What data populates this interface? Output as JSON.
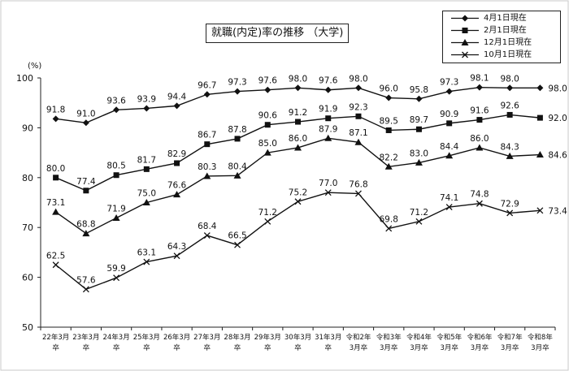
{
  "chart_data": {
    "type": "line",
    "title": "就職(内定)率の推移 （大学)",
    "yunit": "(%)",
    "ylim": [
      50,
      100
    ],
    "yticks": [
      "50",
      "60",
      "70",
      "80",
      "90",
      "100"
    ],
    "grid": false,
    "legend_position": "top-right",
    "categories": [
      [
        "22年3月",
        "卒"
      ],
      [
        "23年3月",
        "卒"
      ],
      [
        "24年3月",
        "卒"
      ],
      [
        "25年3月",
        "卒"
      ],
      [
        "26年3月",
        "卒"
      ],
      [
        "27年3月",
        "卒"
      ],
      [
        "28年3月",
        "卒"
      ],
      [
        "29年3月",
        "卒"
      ],
      [
        "30年3月",
        "卒"
      ],
      [
        "31年3月",
        "卒"
      ],
      [
        "令和2年",
        "3月卒"
      ],
      [
        "令和3年",
        "3月卒"
      ],
      [
        "令和4年",
        "3月卒"
      ],
      [
        "令和5年",
        "3月卒"
      ],
      [
        "令和6年",
        "3月卒"
      ],
      [
        "令和7年",
        "3月卒"
      ],
      [
        "令和8年",
        "3月卒"
      ]
    ],
    "series": [
      {
        "name": "4月1日現在",
        "marker": "diamond",
        "values": [
          91.8,
          91.0,
          93.6,
          93.9,
          94.4,
          96.7,
          97.3,
          97.6,
          98.0,
          97.6,
          98.0,
          96.0,
          95.8,
          97.3,
          98.1,
          98.0,
          98.0
        ],
        "labels": [
          "91.8",
          "91.0",
          "93.6",
          "93.9",
          "94.4",
          "96.7",
          "97.3",
          "97.6",
          "98.0",
          "97.6",
          "98.0",
          "96.0",
          "95.8",
          "97.3",
          "98.1",
          "98.0",
          "98.0"
        ]
      },
      {
        "name": "2月1日現在",
        "marker": "square",
        "values": [
          80.0,
          77.4,
          80.5,
          81.7,
          82.9,
          86.7,
          87.8,
          90.6,
          91.2,
          91.9,
          92.3,
          89.5,
          89.7,
          90.9,
          91.6,
          92.6,
          92.0
        ],
        "labels": [
          "80.0",
          "77.4",
          "80.5",
          "81.7",
          "82.9",
          "86.7",
          "87.8",
          "90.6",
          "91.2",
          "91.9",
          "92.3",
          "89.5",
          "89.7",
          "90.9",
          "91.6",
          "92.6",
          "92.0"
        ]
      },
      {
        "name": "12月1日現在",
        "marker": "triangle",
        "values": [
          73.1,
          68.8,
          71.9,
          75.0,
          76.6,
          80.3,
          80.4,
          85.0,
          86.0,
          87.9,
          87.1,
          82.2,
          83.0,
          84.4,
          86.0,
          84.3,
          84.6
        ],
        "labels": [
          "73.1",
          "68.8",
          "71.9",
          "75.0",
          "76.6",
          "80.3",
          "80.4",
          "85.0",
          "86.0",
          "87.9",
          "87.1",
          "82.2",
          "83.0",
          "84.4",
          "86.0",
          "84.3",
          "84.6"
        ]
      },
      {
        "name": "10月1日現在",
        "marker": "x",
        "values": [
          62.5,
          57.6,
          59.9,
          63.1,
          64.3,
          68.4,
          66.5,
          71.2,
          75.2,
          77.0,
          76.8,
          69.8,
          71.2,
          74.1,
          74.8,
          72.9,
          73.4
        ],
        "labels": [
          "62.5",
          "57.6",
          "59.9",
          "63.1",
          "64.3",
          "68.4",
          "66.5",
          "71.2",
          "75.2",
          "77.0",
          "76.8",
          "69.8",
          "71.2",
          "74.1",
          "74.8",
          "72.9",
          "73.4"
        ]
      }
    ]
  }
}
